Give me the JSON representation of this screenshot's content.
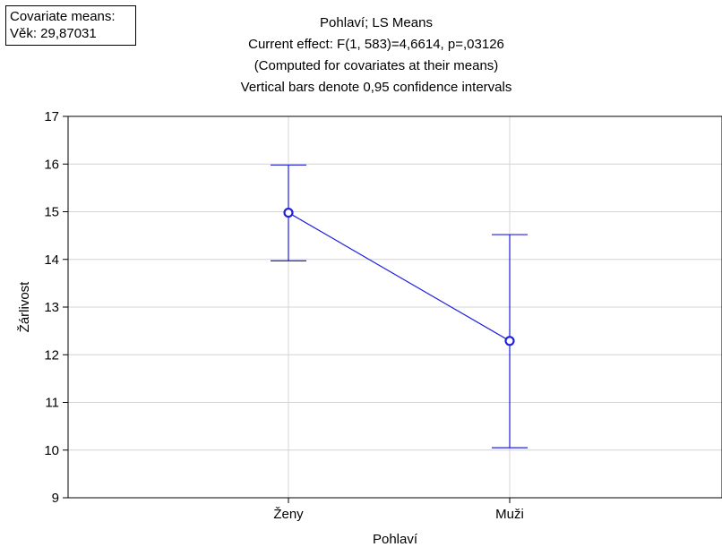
{
  "covariate_box": {
    "line1": "Covariate means:",
    "line2": "Věk: 29,87031"
  },
  "chart_data": {
    "type": "line",
    "title": "Pohlaví; LS Means",
    "subtitle_lines": [
      "Current effect: F(1, 583)=4,6614, p=,03126",
      "(Computed for covariates at their means)",
      "Vertical bars denote 0,95 confidence intervals"
    ],
    "xlabel": "Pohlaví",
    "ylabel": "Žárlivost",
    "categories": [
      "Ženy",
      "Muži"
    ],
    "series": [
      {
        "values": [
          14.98,
          12.29
        ],
        "ci_low": [
          13.97,
          10.05
        ],
        "ci_high": [
          15.98,
          14.52
        ],
        "color": "#1f1fe0"
      }
    ],
    "ylim": [
      9,
      17
    ],
    "yticks": [
      9,
      10,
      11,
      12,
      13,
      14,
      15,
      16,
      17
    ],
    "grid": true
  }
}
